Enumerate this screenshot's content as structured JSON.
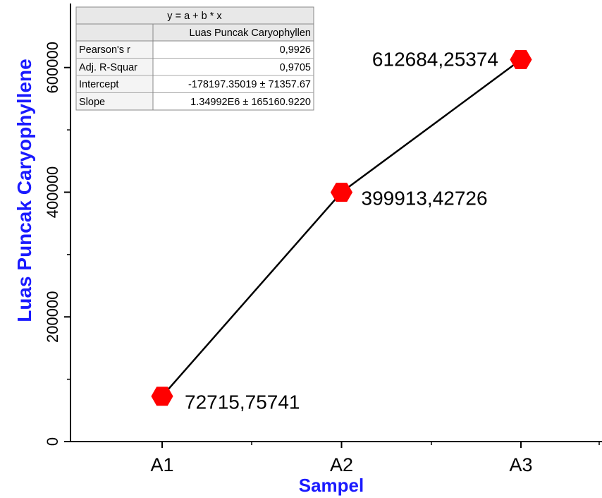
{
  "chart_data": {
    "type": "line",
    "title": "",
    "xlabel": "Sampel",
    "ylabel": "Luas Puncak Caryophyllene",
    "categories": [
      "A1",
      "A2",
      "A3"
    ],
    "values": [
      72715.75741,
      399913.42726,
      612684.25374
    ],
    "data_labels": [
      "72715,75741",
      "399913,42726",
      "612684,25374"
    ],
    "yticks": [
      0,
      200000,
      400000,
      600000
    ],
    "ytick_labels": [
      "0",
      "200000",
      "400000",
      "600000"
    ],
    "ylim": [
      0,
      700000
    ],
    "marker": "hexagon",
    "marker_color": "#ff0000",
    "line_color": "#000000",
    "axis_label_color": "#1a1aff",
    "grid": false,
    "fit_table": {
      "equation": "y = a + b * x",
      "column": "Luas Puncak Caryophyllen",
      "rows": [
        {
          "label": "Pearson's r",
          "value": "0,9926"
        },
        {
          "label": "Adj. R-Squar",
          "value": "0,9705"
        },
        {
          "label": "Intercept",
          "value": "-178197.35019 ± 71357.67"
        },
        {
          "label": "Slope",
          "value": "1.34992E6 ± 165160.9220"
        }
      ]
    }
  }
}
